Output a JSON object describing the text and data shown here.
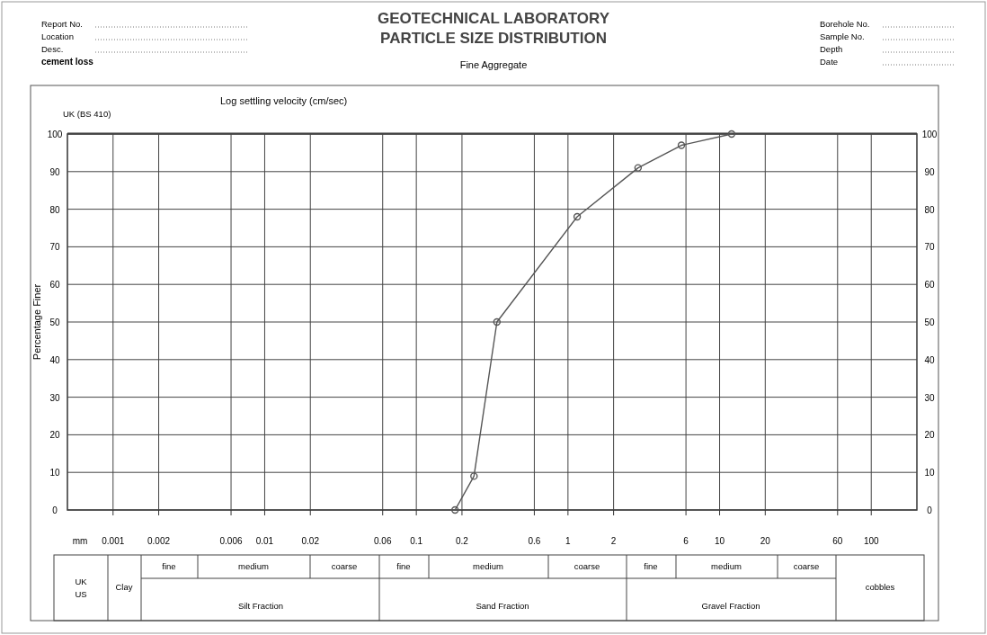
{
  "chart_data": {
    "type": "line",
    "title": "GEOTECHNICAL LABORATORY\nPARTICLE SIZE DISTRIBUTION",
    "subtitle": "Fine Aggregate",
    "xlabel": "mm",
    "ylabel": "Percentage Finer",
    "x2label": "Log settling velocity (cm/sec)",
    "log": "x",
    "xlim": [
      0.0005,
      200
    ],
    "xticks": [
      0.001,
      0.002,
      0.006,
      0.01,
      0.02,
      0.06,
      0.1,
      0.2,
      0.6,
      1,
      2,
      6,
      10,
      20,
      60,
      100
    ],
    "ylim": [
      0,
      100
    ],
    "yticks": [
      0,
      10,
      20,
      30,
      40,
      50,
      60,
      70,
      80,
      90,
      100
    ],
    "y2lim": [
      0,
      100
    ],
    "y2ticks": [
      0,
      10,
      20,
      30,
      40,
      50,
      60,
      70,
      80,
      90,
      100
    ],
    "grid": true,
    "marker": "circle",
    "line_style": "solid",
    "series": [
      {
        "color": "#555555",
        "x": [
          0.18,
          0.24,
          0.34,
          1.15,
          2.9,
          5.6,
          12
        ],
        "values": [
          0,
          9,
          50,
          78,
          91,
          97,
          100
        ]
      }
    ],
    "annotations": [
      "Report No.",
      "Location",
      "Desc.",
      "cement loss",
      "Borehole No.",
      "Sample No.",
      "Depth",
      "Date",
      "UK (BS 410)",
      "UK",
      "US",
      "Clay",
      "fine",
      "medium",
      "coarse",
      "Silt Fraction",
      "fine",
      "medium",
      "coarse",
      "Sand Fraction",
      "fine",
      "medium",
      "coarse",
      "Gravel Fraction",
      "cobbles"
    ]
  }
}
